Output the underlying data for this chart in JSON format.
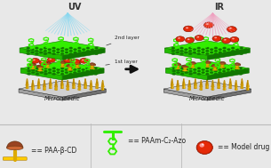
{
  "bg_color": "#e8e8e8",
  "legend_bg": "#f8f8f8",
  "divider_color": "#bbbbbb",
  "uv_text": "UV",
  "ir_text": "IR",
  "uv_color": "#88d8f0",
  "ir_color": "#f0a0c0",
  "arrow_color": "#111111",
  "microneedle_text": "Microneedle",
  "layer2_text": "2nd layer",
  "layer1_text": "1st layer",
  "green_bright": "#33ee00",
  "green_mid": "#22bb00",
  "green_dark": "#117700",
  "yellow_bright": "#ffcc00",
  "yellow_mid": "#ddaa00",
  "yellow_dark": "#aa7700",
  "red_bright": "#ff3311",
  "red_mid": "#cc2200",
  "red_dark": "#881100",
  "brown_bright": "#cc6633",
  "brown_mid": "#994422",
  "brown_dark": "#663311",
  "gray_light": "#d0d0d0",
  "gray_mid": "#a0a0a0",
  "gray_dark": "#707070",
  "white": "#ffffff",
  "legend_cd_text": "== PAA-β-CD",
  "legend_azo_text": "== PAAm-C₂-Azo",
  "legend_drug_text": "== Model drug",
  "fig_width": 3.05,
  "fig_height": 1.89,
  "dpi": 100
}
